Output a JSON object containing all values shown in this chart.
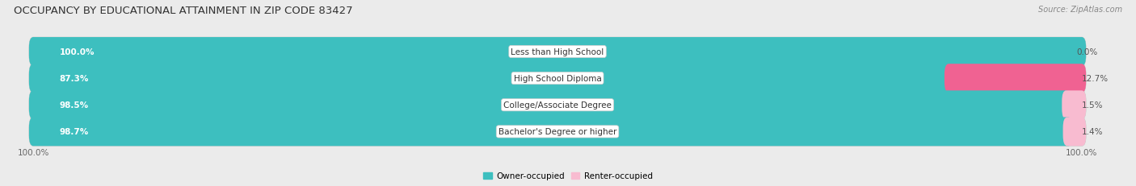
{
  "title": "OCCUPANCY BY EDUCATIONAL ATTAINMENT IN ZIP CODE 83427",
  "source": "Source: ZipAtlas.com",
  "categories": [
    "Less than High School",
    "High School Diploma",
    "College/Associate Degree",
    "Bachelor's Degree or higher"
  ],
  "owner_values": [
    100.0,
    87.3,
    98.5,
    98.7
  ],
  "renter_values": [
    0.0,
    12.7,
    1.5,
    1.4
  ],
  "owner_color": "#3DBFBF",
  "renter_color_dark": "#F06292",
  "renter_color_light": "#F8BBD0",
  "bg_color": "#EBEBEB",
  "bar_bg_color": "#DEDEDE",
  "title_fontsize": 9.5,
  "source_fontsize": 7,
  "label_fontsize": 7.5,
  "value_fontsize": 7.5,
  "legend_owner": "Owner-occupied",
  "legend_renter": "Renter-occupied"
}
